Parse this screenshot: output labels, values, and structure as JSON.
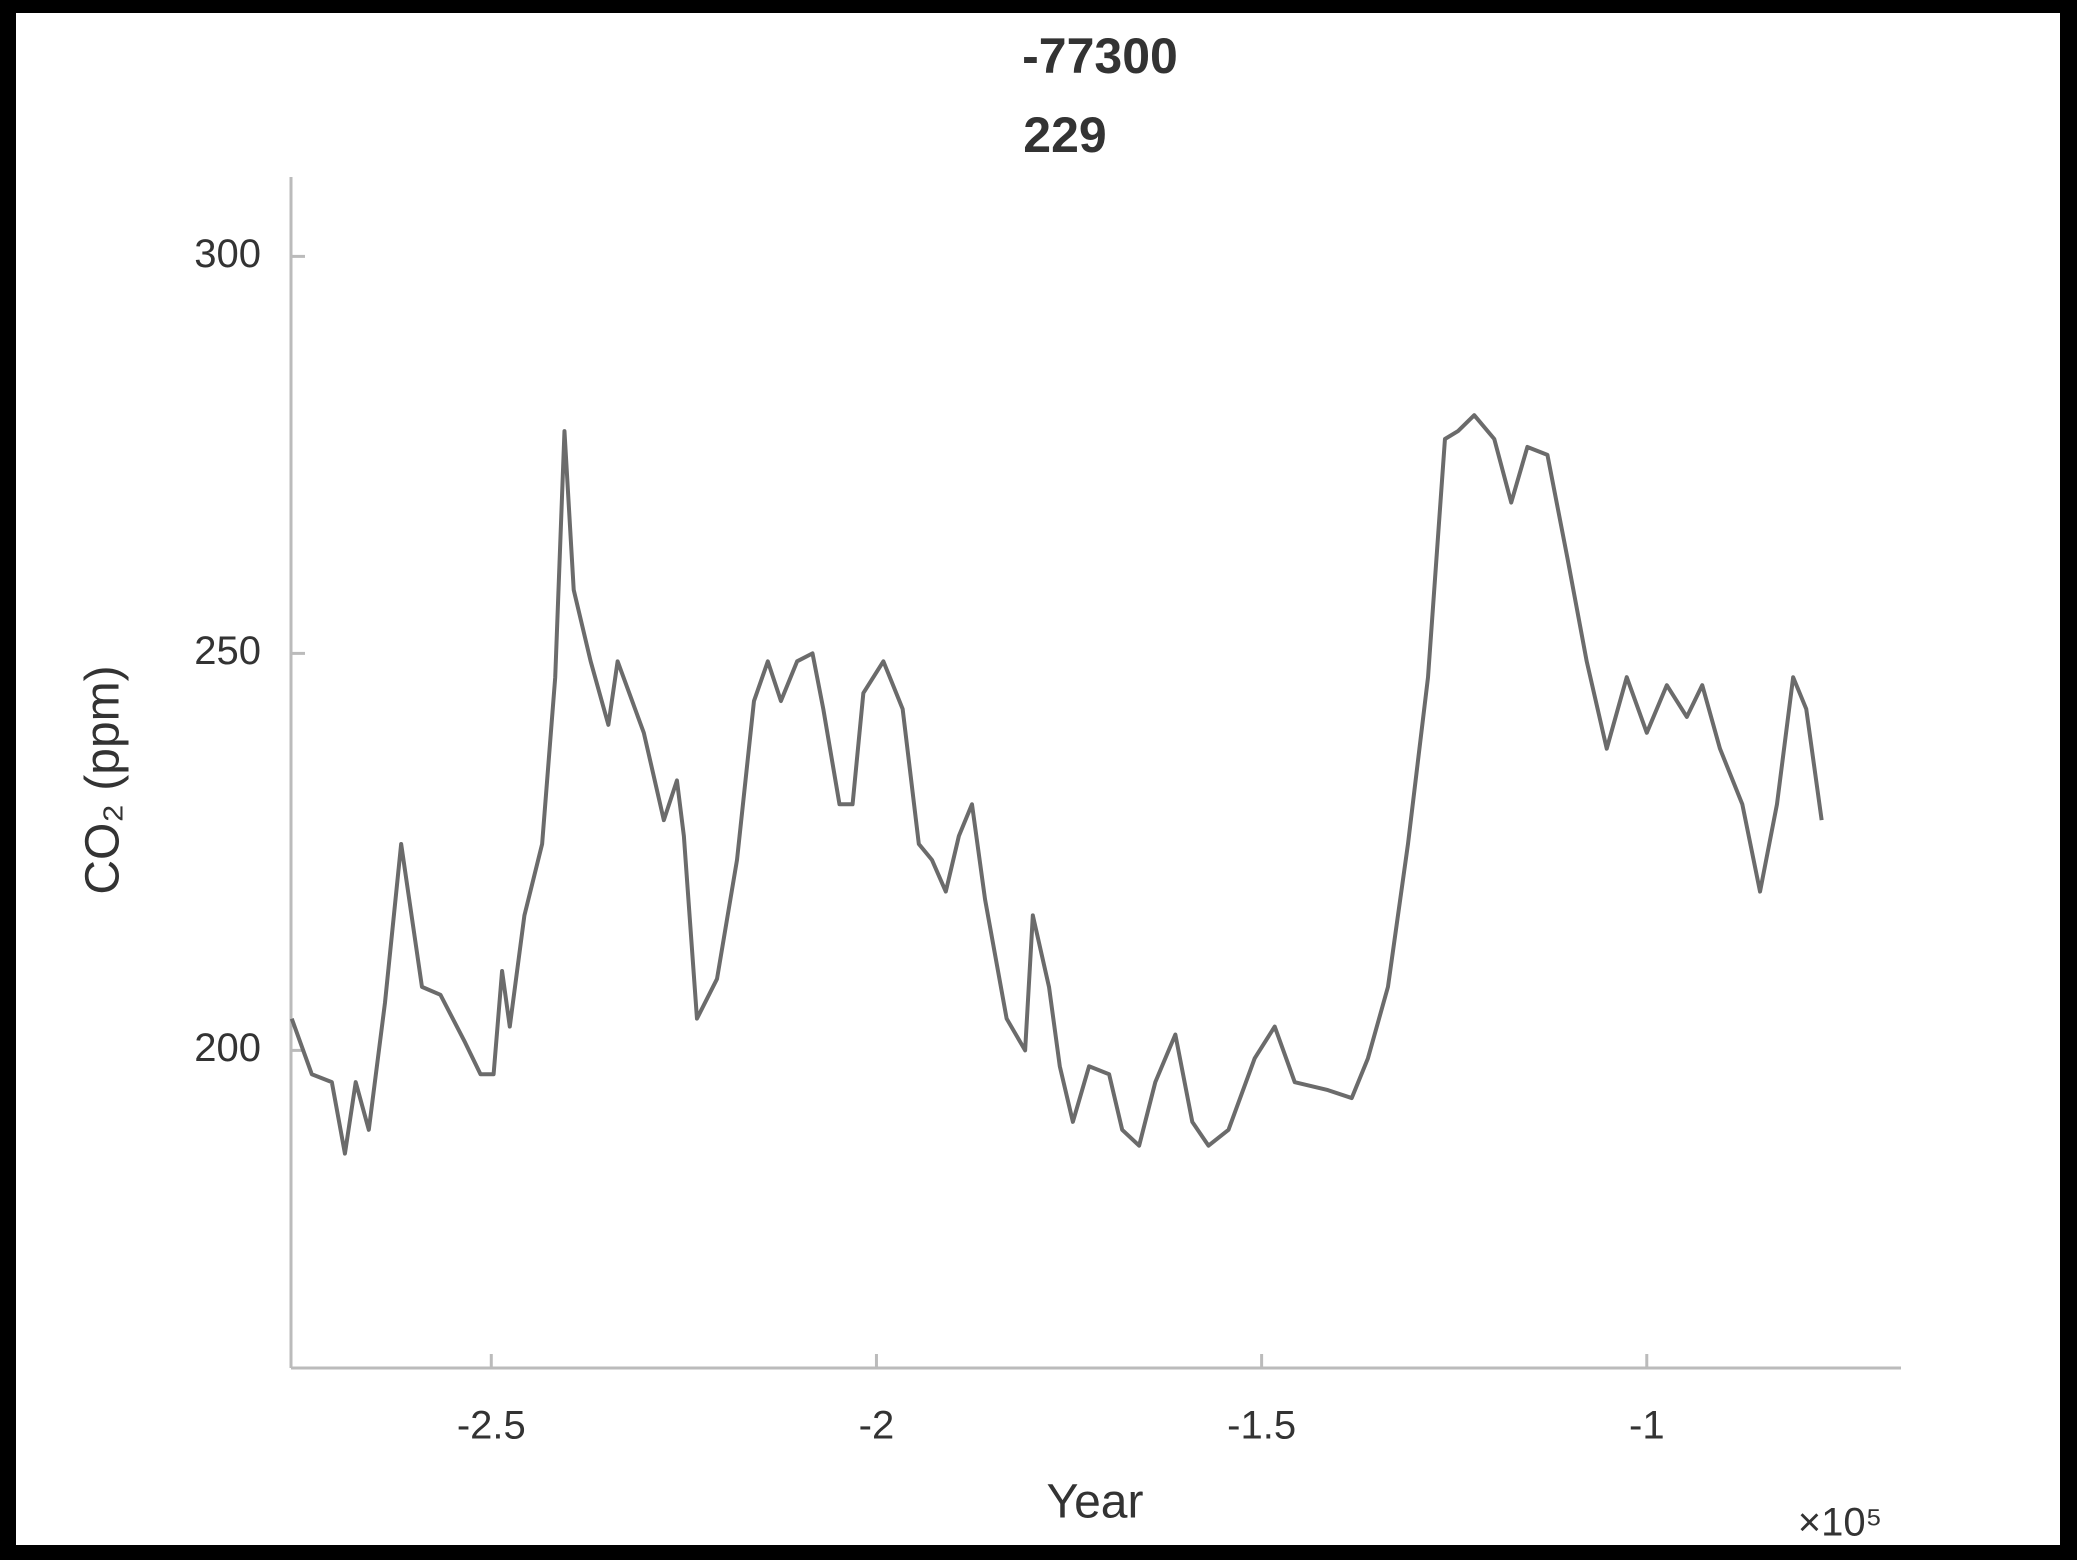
{
  "chart_data": {
    "type": "line",
    "title_lines": [
      "-77300",
      "229"
    ],
    "x_label": "Year",
    "y_label": "CO₂ (ppm)",
    "x_multiplier": "×10⁵",
    "xlim": [
      -2.76,
      -0.67
    ],
    "ylim": [
      160,
      310
    ],
    "xticks": [
      -2.5,
      -2,
      -1.5,
      -1
    ],
    "yticks": [
      200,
      250,
      300
    ],
    "grid": false,
    "series": [
      {
        "name": "CO₂",
        "color": "#6b6b6b",
        "x": [
          -2.759,
          -2.733,
          -2.707,
          -2.69,
          -2.676,
          -2.659,
          -2.638,
          -2.617,
          -2.59,
          -2.566,
          -2.534,
          -2.514,
          -2.497,
          -2.486,
          -2.476,
          -2.457,
          -2.434,
          -2.417,
          -2.405,
          -2.393,
          -2.371,
          -2.348,
          -2.336,
          -2.302,
          -2.276,
          -2.259,
          -2.25,
          -2.233,
          -2.207,
          -2.181,
          -2.159,
          -2.141,
          -2.124,
          -2.103,
          -2.083,
          -2.069,
          -2.048,
          -2.031,
          -2.017,
          -1.991,
          -1.966,
          -1.945,
          -1.928,
          -1.91,
          -1.893,
          -1.876,
          -1.859,
          -1.831,
          -1.807,
          -1.797,
          -1.776,
          -1.762,
          -1.745,
          -1.724,
          -1.698,
          -1.681,
          -1.659,
          -1.638,
          -1.612,
          -1.59,
          -1.569,
          -1.543,
          -1.509,
          -1.483,
          -1.457,
          -1.414,
          -1.383,
          -1.362,
          -1.336,
          -1.31,
          -1.284,
          -1.262,
          -1.245,
          -1.224,
          -1.198,
          -1.176,
          -1.155,
          -1.129,
          -1.103,
          -1.078,
          -1.052,
          -1.026,
          -1.0,
          -0.974,
          -0.948,
          -0.928,
          -0.905,
          -0.876,
          -0.853,
          -0.831,
          -0.81,
          -0.793,
          -0.773
        ],
        "values": [
          204,
          197,
          196,
          187,
          196,
          190,
          206,
          226,
          208,
          207,
          201,
          197,
          197,
          210,
          203,
          217,
          226,
          247,
          278,
          258,
          249,
          241,
          249,
          240,
          229,
          234,
          227,
          204,
          209,
          224,
          244,
          249,
          244,
          249,
          250,
          243,
          231,
          231,
          245,
          249,
          243,
          226,
          224,
          220,
          227,
          231,
          219,
          204,
          200,
          217,
          208,
          198,
          191,
          198,
          197,
          190,
          188,
          196,
          202,
          191,
          188,
          190,
          199,
          203,
          196,
          195,
          194,
          199,
          208,
          226,
          247,
          277,
          278,
          280,
          277,
          269,
          276,
          275,
          262,
          249,
          238,
          247,
          240,
          246,
          242,
          246,
          238,
          231,
          220,
          231,
          247,
          243,
          229
        ]
      }
    ]
  }
}
